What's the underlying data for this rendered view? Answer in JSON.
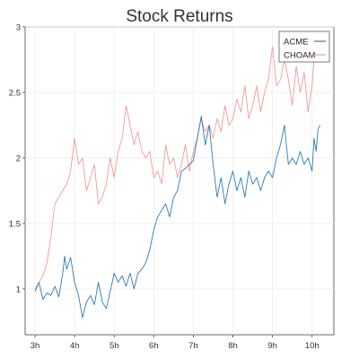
{
  "chart_data": {
    "type": "line",
    "title": "Stock Returns",
    "xlabel": "",
    "ylabel": "",
    "x_unit": "hour",
    "xlim": [
      2.75,
      10.55
    ],
    "ylim": [
      0.65,
      3.0
    ],
    "xticks": [
      {
        "value": 3,
        "label": "3h"
      },
      {
        "value": 4,
        "label": "4h"
      },
      {
        "value": 5,
        "label": "5h"
      },
      {
        "value": 6,
        "label": "6h"
      },
      {
        "value": 7,
        "label": "7h"
      },
      {
        "value": 8,
        "label": "8h"
      },
      {
        "value": 9,
        "label": "9h"
      },
      {
        "value": 10,
        "label": "10h"
      }
    ],
    "yticks": [
      {
        "value": 1,
        "label": "1"
      },
      {
        "value": 1.5,
        "label": "1.5"
      },
      {
        "value": 2,
        "label": "2"
      },
      {
        "value": 2.5,
        "label": "2.5"
      },
      {
        "value": 3,
        "label": "3"
      }
    ],
    "grid": true,
    "legend_position": "top-right",
    "series": [
      {
        "name": "ACME",
        "color": "#2f7ab5",
        "x": [
          3.0,
          3.1,
          3.2,
          3.3,
          3.4,
          3.5,
          3.6,
          3.7,
          3.75,
          3.8,
          3.9,
          4.0,
          4.1,
          4.2,
          4.3,
          4.4,
          4.5,
          4.6,
          4.7,
          4.8,
          4.9,
          5.0,
          5.1,
          5.2,
          5.3,
          5.4,
          5.5,
          5.6,
          5.7,
          5.8,
          5.9,
          6.0,
          6.1,
          6.2,
          6.3,
          6.4,
          6.5,
          6.6,
          6.7,
          6.8,
          6.9,
          7.0,
          7.1,
          7.2,
          7.3,
          7.4,
          7.5,
          7.6,
          7.7,
          7.8,
          7.9,
          8.0,
          8.1,
          8.2,
          8.3,
          8.4,
          8.5,
          8.6,
          8.7,
          8.8,
          8.9,
          9.0,
          9.1,
          9.2,
          9.3,
          9.4,
          9.5,
          9.6,
          9.7,
          9.8,
          9.9,
          10.0,
          10.05,
          10.1,
          10.15,
          10.2
        ],
        "values": [
          0.98,
          1.05,
          0.92,
          0.97,
          0.95,
          1.02,
          0.94,
          1.12,
          1.25,
          1.15,
          1.24,
          1.05,
          0.95,
          0.78,
          0.9,
          0.95,
          0.88,
          1.05,
          0.9,
          0.85,
          0.98,
          1.12,
          1.05,
          1.1,
          1.02,
          1.12,
          1.0,
          1.12,
          1.15,
          1.2,
          1.3,
          1.45,
          1.55,
          1.6,
          1.65,
          1.55,
          1.7,
          1.75,
          1.9,
          1.92,
          1.95,
          1.98,
          2.15,
          2.32,
          2.1,
          2.25,
          1.95,
          1.7,
          1.85,
          1.65,
          1.8,
          1.9,
          1.75,
          1.85,
          1.7,
          1.9,
          1.8,
          1.85,
          1.75,
          1.85,
          1.9,
          1.85,
          2.0,
          2.1,
          2.25,
          1.95,
          2.0,
          1.95,
          2.05,
          1.95,
          2.0,
          1.9,
          2.15,
          2.05,
          2.22,
          2.25
        ]
      },
      {
        "name": "CHOAM",
        "color": "#f19a98",
        "x": [
          3.0,
          3.1,
          3.2,
          3.3,
          3.4,
          3.5,
          3.6,
          3.7,
          3.8,
          3.9,
          4.0,
          4.1,
          4.2,
          4.3,
          4.4,
          4.5,
          4.6,
          4.7,
          4.8,
          4.9,
          5.0,
          5.1,
          5.2,
          5.3,
          5.4,
          5.5,
          5.6,
          5.7,
          5.8,
          5.9,
          6.0,
          6.1,
          6.2,
          6.3,
          6.4,
          6.5,
          6.6,
          6.7,
          6.8,
          6.9,
          7.0,
          7.1,
          7.2,
          7.3,
          7.4,
          7.5,
          7.6,
          7.7,
          7.8,
          7.9,
          8.0,
          8.1,
          8.2,
          8.3,
          8.4,
          8.5,
          8.6,
          8.7,
          8.8,
          8.9,
          9.0,
          9.1,
          9.2,
          9.3,
          9.4,
          9.5,
          9.6,
          9.7,
          9.8,
          9.9,
          10.0,
          10.05,
          10.1,
          10.15,
          10.2
        ],
        "values": [
          1.0,
          1.05,
          1.1,
          1.2,
          1.4,
          1.65,
          1.7,
          1.75,
          1.8,
          1.9,
          2.15,
          1.95,
          2.0,
          1.75,
          1.85,
          1.95,
          1.65,
          1.7,
          1.8,
          2.0,
          1.85,
          2.05,
          2.15,
          2.4,
          2.25,
          2.1,
          2.2,
          2.05,
          2.0,
          2.05,
          1.85,
          1.9,
          1.8,
          2.1,
          1.95,
          2.0,
          1.85,
          1.95,
          2.1,
          1.9,
          2.05,
          2.15,
          2.3,
          2.2,
          2.25,
          2.15,
          2.3,
          2.2,
          2.4,
          2.25,
          2.3,
          2.45,
          2.35,
          2.55,
          2.3,
          2.4,
          2.55,
          2.35,
          2.5,
          2.6,
          2.85,
          2.55,
          2.6,
          2.75,
          2.6,
          2.4,
          2.7,
          2.5,
          2.65,
          2.35,
          2.55,
          2.75,
          2.85,
          2.75,
          2.85
        ]
      }
    ]
  }
}
